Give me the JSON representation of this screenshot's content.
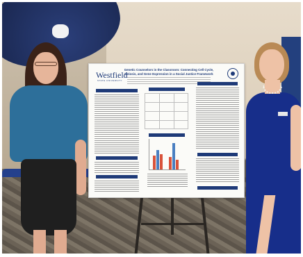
{
  "scene": {
    "description_icons": [
      "umbrella-decor",
      "easel",
      "research-poster",
      "presenter-left",
      "presenter-right"
    ]
  },
  "poster": {
    "logo_text": "Westfield",
    "logo_subtext": "STATE UNIVERSITY",
    "title": "Genetic Counselors in the Classroom: Connecting Cell Cycle, Meiosis, and Gene Expression in a Social Justice Framework",
    "section_colors": {
      "header": "#1e3a78"
    },
    "chart_bar_colors": [
      "#d9533b",
      "#4a7fc1"
    ]
  }
}
